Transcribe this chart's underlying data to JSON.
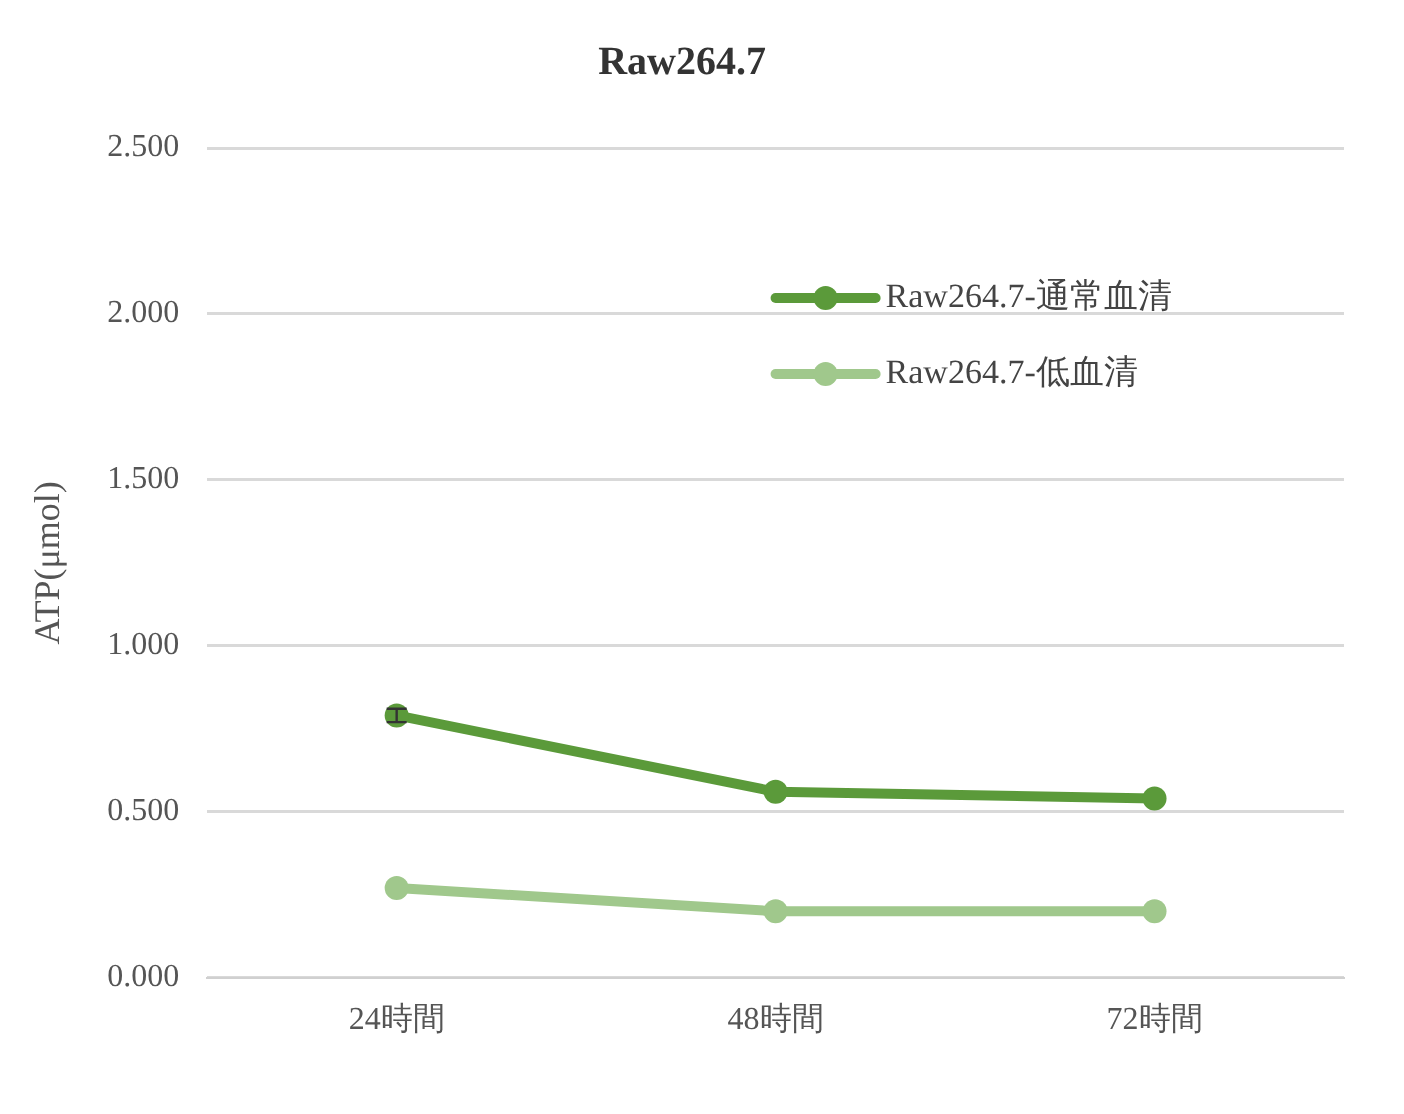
{
  "chart_data": {
    "type": "line",
    "title": "Raw264.7",
    "ylabel": "ATP(μmol)",
    "categories": [
      "24時間",
      "48時間",
      "72時間"
    ],
    "series": [
      {
        "name": "Raw264.7-通常血清",
        "color": "#5b9a3a",
        "values": [
          0.79,
          0.56,
          0.54
        ],
        "errors": [
          0.02,
          null,
          null
        ]
      },
      {
        "name": "Raw264.7-低血清",
        "color": "#a0c88c",
        "values": [
          0.27,
          0.2,
          0.2
        ]
      }
    ],
    "ylim": [
      0,
      2.5
    ],
    "yticks": [
      {
        "value": 0,
        "label": "0.000"
      },
      {
        "value": 0.5,
        "label": "0.500"
      },
      {
        "value": 1,
        "label": "1.000"
      },
      {
        "value": 1.5,
        "label": "1.500"
      },
      {
        "value": 2,
        "label": "2.000"
      },
      {
        "value": 2.5,
        "label": "2.500"
      }
    ],
    "grid": "y",
    "legend": "top right",
    "marker": "circle",
    "line_style": "solid"
  }
}
